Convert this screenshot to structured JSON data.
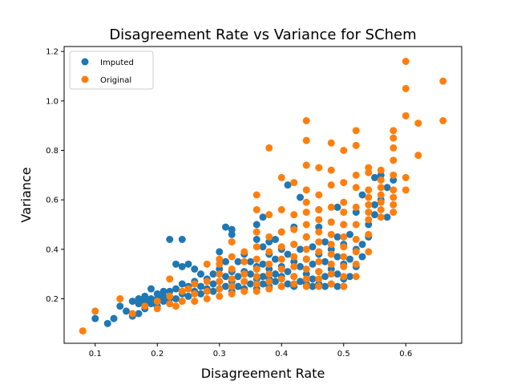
{
  "chart_data": {
    "type": "scatter",
    "title": "Disagreement Rate vs Variance for SChem",
    "xlabel": "Disagreement Rate",
    "ylabel": "Variance",
    "xlim": [
      0.05,
      0.69
    ],
    "ylim": [
      0.02,
      1.22
    ],
    "x_ticks": [
      0.1,
      0.2,
      0.3,
      0.4,
      0.5,
      0.6
    ],
    "x_tick_labels": [
      "0.1",
      "0.2",
      "0.3",
      "0.4",
      "0.5",
      "0.6"
    ],
    "y_ticks": [
      0.2,
      0.4,
      0.6,
      0.8,
      1.0,
      1.2
    ],
    "y_tick_labels": [
      "0.2",
      "0.4",
      "0.6",
      "0.8",
      "1.0",
      "1.2"
    ],
    "grid": false,
    "legend_placement": "top-left",
    "series": [
      {
        "name": "Imputed",
        "color": "#1f77b4",
        "points": [
          [
            0.1,
            0.12
          ],
          [
            0.12,
            0.1
          ],
          [
            0.13,
            0.12
          ],
          [
            0.14,
            0.17
          ],
          [
            0.15,
            0.15
          ],
          [
            0.16,
            0.13
          ],
          [
            0.16,
            0.19
          ],
          [
            0.17,
            0.14
          ],
          [
            0.17,
            0.18
          ],
          [
            0.17,
            0.2
          ],
          [
            0.18,
            0.16
          ],
          [
            0.18,
            0.19
          ],
          [
            0.18,
            0.21
          ],
          [
            0.19,
            0.18
          ],
          [
            0.19,
            0.2
          ],
          [
            0.19,
            0.24
          ],
          [
            0.2,
            0.17
          ],
          [
            0.2,
            0.2
          ],
          [
            0.2,
            0.22
          ],
          [
            0.21,
            0.19
          ],
          [
            0.21,
            0.21
          ],
          [
            0.21,
            0.23
          ],
          [
            0.22,
            0.2
          ],
          [
            0.22,
            0.23
          ],
          [
            0.22,
            0.44
          ],
          [
            0.23,
            0.2
          ],
          [
            0.23,
            0.24
          ],
          [
            0.23,
            0.34
          ],
          [
            0.24,
            0.22
          ],
          [
            0.24,
            0.26
          ],
          [
            0.24,
            0.33
          ],
          [
            0.24,
            0.44
          ],
          [
            0.25,
            0.21
          ],
          [
            0.25,
            0.25
          ],
          [
            0.25,
            0.34
          ],
          [
            0.26,
            0.23
          ],
          [
            0.26,
            0.27
          ],
          [
            0.26,
            0.32
          ],
          [
            0.27,
            0.22
          ],
          [
            0.27,
            0.25
          ],
          [
            0.27,
            0.3
          ],
          [
            0.28,
            0.24
          ],
          [
            0.28,
            0.28
          ],
          [
            0.29,
            0.23
          ],
          [
            0.29,
            0.26
          ],
          [
            0.29,
            0.3
          ],
          [
            0.3,
            0.24
          ],
          [
            0.3,
            0.27
          ],
          [
            0.3,
            0.32
          ],
          [
            0.3,
            0.39
          ],
          [
            0.31,
            0.25
          ],
          [
            0.31,
            0.29
          ],
          [
            0.31,
            0.35
          ],
          [
            0.31,
            0.49
          ],
          [
            0.32,
            0.23
          ],
          [
            0.32,
            0.27
          ],
          [
            0.32,
            0.31
          ],
          [
            0.32,
            0.46
          ],
          [
            0.32,
            0.48
          ],
          [
            0.33,
            0.25
          ],
          [
            0.33,
            0.29
          ],
          [
            0.33,
            0.35
          ],
          [
            0.34,
            0.24
          ],
          [
            0.34,
            0.27
          ],
          [
            0.34,
            0.31
          ],
          [
            0.34,
            0.38
          ],
          [
            0.35,
            0.26
          ],
          [
            0.35,
            0.3
          ],
          [
            0.35,
            0.35
          ],
          [
            0.36,
            0.24
          ],
          [
            0.36,
            0.28
          ],
          [
            0.36,
            0.33
          ],
          [
            0.36,
            0.44
          ],
          [
            0.36,
            0.5
          ],
          [
            0.37,
            0.26
          ],
          [
            0.37,
            0.29
          ],
          [
            0.37,
            0.34
          ],
          [
            0.37,
            0.41
          ],
          [
            0.37,
            0.53
          ],
          [
            0.38,
            0.25
          ],
          [
            0.38,
            0.28
          ],
          [
            0.38,
            0.32
          ],
          [
            0.38,
            0.38
          ],
          [
            0.38,
            0.43
          ],
          [
            0.39,
            0.27
          ],
          [
            0.39,
            0.3
          ],
          [
            0.39,
            0.36
          ],
          [
            0.39,
            0.44
          ],
          [
            0.4,
            0.25
          ],
          [
            0.4,
            0.29
          ],
          [
            0.4,
            0.33
          ],
          [
            0.4,
            0.4
          ],
          [
            0.4,
            0.47
          ],
          [
            0.41,
            0.26
          ],
          [
            0.41,
            0.31
          ],
          [
            0.41,
            0.38
          ],
          [
            0.41,
            0.66
          ],
          [
            0.42,
            0.25
          ],
          [
            0.42,
            0.29
          ],
          [
            0.42,
            0.35
          ],
          [
            0.42,
            0.42
          ],
          [
            0.42,
            0.49
          ],
          [
            0.43,
            0.27
          ],
          [
            0.43,
            0.33
          ],
          [
            0.43,
            0.4
          ],
          [
            0.43,
            0.61
          ],
          [
            0.44,
            0.26
          ],
          [
            0.44,
            0.3
          ],
          [
            0.44,
            0.36
          ],
          [
            0.44,
            0.45
          ],
          [
            0.45,
            0.25
          ],
          [
            0.45,
            0.28
          ],
          [
            0.45,
            0.34
          ],
          [
            0.45,
            0.41
          ],
          [
            0.46,
            0.26
          ],
          [
            0.46,
            0.31
          ],
          [
            0.46,
            0.38
          ],
          [
            0.46,
            0.49
          ],
          [
            0.46,
            0.56
          ],
          [
            0.47,
            0.25
          ],
          [
            0.47,
            0.29
          ],
          [
            0.47,
            0.35
          ],
          [
            0.47,
            0.43
          ],
          [
            0.48,
            0.26
          ],
          [
            0.48,
            0.32
          ],
          [
            0.48,
            0.4
          ],
          [
            0.48,
            0.51
          ],
          [
            0.49,
            0.25
          ],
          [
            0.49,
            0.3
          ],
          [
            0.49,
            0.37
          ],
          [
            0.49,
            0.45
          ],
          [
            0.49,
            0.57
          ],
          [
            0.5,
            0.25
          ],
          [
            0.5,
            0.28
          ],
          [
            0.5,
            0.34
          ],
          [
            0.5,
            0.42
          ],
          [
            0.5,
            0.5
          ],
          [
            0.51,
            0.29
          ],
          [
            0.51,
            0.36
          ],
          [
            0.51,
            0.46
          ],
          [
            0.52,
            0.33
          ],
          [
            0.52,
            0.4
          ],
          [
            0.52,
            0.55
          ],
          [
            0.53,
            0.37
          ],
          [
            0.53,
            0.42
          ],
          [
            0.53,
            0.62
          ],
          [
            0.54,
            0.45
          ],
          [
            0.54,
            0.5
          ],
          [
            0.55,
            0.54
          ],
          [
            0.55,
            0.58
          ],
          [
            0.55,
            0.69
          ],
          [
            0.56,
            0.6
          ],
          [
            0.56,
            0.7
          ],
          [
            0.57,
            0.53
          ],
          [
            0.57,
            0.65
          ],
          [
            0.58,
            0.68
          ]
        ]
      },
      {
        "name": "Original",
        "color": "#ff7f0e",
        "points": [
          [
            0.08,
            0.07
          ],
          [
            0.1,
            0.15
          ],
          [
            0.14,
            0.2
          ],
          [
            0.16,
            0.14
          ],
          [
            0.18,
            0.17
          ],
          [
            0.2,
            0.16
          ],
          [
            0.2,
            0.19
          ],
          [
            0.22,
            0.18
          ],
          [
            0.22,
            0.21
          ],
          [
            0.22,
            0.28
          ],
          [
            0.23,
            0.17
          ],
          [
            0.24,
            0.19
          ],
          [
            0.24,
            0.23
          ],
          [
            0.25,
            0.24
          ],
          [
            0.26,
            0.19
          ],
          [
            0.26,
            0.22
          ],
          [
            0.26,
            0.26
          ],
          [
            0.28,
            0.2
          ],
          [
            0.28,
            0.23
          ],
          [
            0.28,
            0.27
          ],
          [
            0.28,
            0.34
          ],
          [
            0.3,
            0.21
          ],
          [
            0.3,
            0.24
          ],
          [
            0.3,
            0.27
          ],
          [
            0.3,
            0.3
          ],
          [
            0.3,
            0.34
          ],
          [
            0.3,
            0.36
          ],
          [
            0.32,
            0.22
          ],
          [
            0.32,
            0.25
          ],
          [
            0.32,
            0.28
          ],
          [
            0.32,
            0.32
          ],
          [
            0.32,
            0.37
          ],
          [
            0.32,
            0.43
          ],
          [
            0.34,
            0.23
          ],
          [
            0.34,
            0.27
          ],
          [
            0.34,
            0.3
          ],
          [
            0.34,
            0.35
          ],
          [
            0.34,
            0.39
          ],
          [
            0.36,
            0.23
          ],
          [
            0.36,
            0.26
          ],
          [
            0.36,
            0.29
          ],
          [
            0.36,
            0.32
          ],
          [
            0.36,
            0.36
          ],
          [
            0.36,
            0.41
          ],
          [
            0.36,
            0.47
          ],
          [
            0.36,
            0.56
          ],
          [
            0.36,
            0.62
          ],
          [
            0.38,
            0.24
          ],
          [
            0.38,
            0.27
          ],
          [
            0.38,
            0.3
          ],
          [
            0.38,
            0.34
          ],
          [
            0.38,
            0.39
          ],
          [
            0.38,
            0.45
          ],
          [
            0.38,
            0.54
          ],
          [
            0.38,
            0.81
          ],
          [
            0.4,
            0.25
          ],
          [
            0.4,
            0.28
          ],
          [
            0.4,
            0.32
          ],
          [
            0.4,
            0.36
          ],
          [
            0.4,
            0.41
          ],
          [
            0.4,
            0.47
          ],
          [
            0.4,
            0.56
          ],
          [
            0.4,
            0.69
          ],
          [
            0.42,
            0.26
          ],
          [
            0.42,
            0.29
          ],
          [
            0.42,
            0.33
          ],
          [
            0.42,
            0.37
          ],
          [
            0.42,
            0.42
          ],
          [
            0.42,
            0.48
          ],
          [
            0.42,
            0.54
          ],
          [
            0.42,
            0.67
          ],
          [
            0.44,
            0.25
          ],
          [
            0.44,
            0.28
          ],
          [
            0.44,
            0.32
          ],
          [
            0.44,
            0.36
          ],
          [
            0.44,
            0.4
          ],
          [
            0.44,
            0.45
          ],
          [
            0.44,
            0.5
          ],
          [
            0.44,
            0.55
          ],
          [
            0.44,
            0.59
          ],
          [
            0.44,
            0.64
          ],
          [
            0.44,
            0.74
          ],
          [
            0.44,
            0.84
          ],
          [
            0.44,
            0.92
          ],
          [
            0.46,
            0.25
          ],
          [
            0.46,
            0.28
          ],
          [
            0.46,
            0.31
          ],
          [
            0.46,
            0.35
          ],
          [
            0.46,
            0.39
          ],
          [
            0.46,
            0.43
          ],
          [
            0.46,
            0.47
          ],
          [
            0.46,
            0.52
          ],
          [
            0.46,
            0.56
          ],
          [
            0.46,
            0.62
          ],
          [
            0.46,
            0.73
          ],
          [
            0.48,
            0.26
          ],
          [
            0.48,
            0.3
          ],
          [
            0.48,
            0.34
          ],
          [
            0.48,
            0.38
          ],
          [
            0.48,
            0.42
          ],
          [
            0.48,
            0.46
          ],
          [
            0.48,
            0.51
          ],
          [
            0.48,
            0.57
          ],
          [
            0.48,
            0.66
          ],
          [
            0.48,
            0.72
          ],
          [
            0.48,
            0.83
          ],
          [
            0.5,
            0.25
          ],
          [
            0.5,
            0.29
          ],
          [
            0.5,
            0.33
          ],
          [
            0.5,
            0.37
          ],
          [
            0.5,
            0.41
          ],
          [
            0.5,
            0.45
          ],
          [
            0.5,
            0.5
          ],
          [
            0.5,
            0.55
          ],
          [
            0.5,
            0.59
          ],
          [
            0.5,
            0.67
          ],
          [
            0.5,
            0.8
          ],
          [
            0.52,
            0.29
          ],
          [
            0.52,
            0.34
          ],
          [
            0.52,
            0.39
          ],
          [
            0.52,
            0.44
          ],
          [
            0.52,
            0.5
          ],
          [
            0.52,
            0.57
          ],
          [
            0.52,
            0.65
          ],
          [
            0.52,
            0.7
          ],
          [
            0.52,
            0.82
          ],
          [
            0.52,
            0.88
          ],
          [
            0.54,
            0.39
          ],
          [
            0.54,
            0.46
          ],
          [
            0.54,
            0.52
          ],
          [
            0.54,
            0.55
          ],
          [
            0.54,
            0.58
          ],
          [
            0.54,
            0.61
          ],
          [
            0.54,
            0.64
          ],
          [
            0.54,
            0.71
          ],
          [
            0.54,
            0.73
          ],
          [
            0.56,
            0.53
          ],
          [
            0.56,
            0.56
          ],
          [
            0.56,
            0.59
          ],
          [
            0.56,
            0.62
          ],
          [
            0.56,
            0.65
          ],
          [
            0.56,
            0.68
          ],
          [
            0.56,
            0.72
          ],
          [
            0.58,
            0.55
          ],
          [
            0.58,
            0.58
          ],
          [
            0.58,
            0.61
          ],
          [
            0.58,
            0.64
          ],
          [
            0.58,
            0.7
          ],
          [
            0.58,
            0.76
          ],
          [
            0.58,
            0.81
          ],
          [
            0.58,
            0.85
          ],
          [
            0.58,
            0.88
          ],
          [
            0.6,
            0.64
          ],
          [
            0.6,
            0.69
          ],
          [
            0.6,
            0.94
          ],
          [
            0.6,
            1.05
          ],
          [
            0.6,
            1.16
          ],
          [
            0.62,
            0.78
          ],
          [
            0.62,
            0.91
          ],
          [
            0.66,
            0.92
          ],
          [
            0.66,
            1.08
          ]
        ]
      }
    ]
  }
}
